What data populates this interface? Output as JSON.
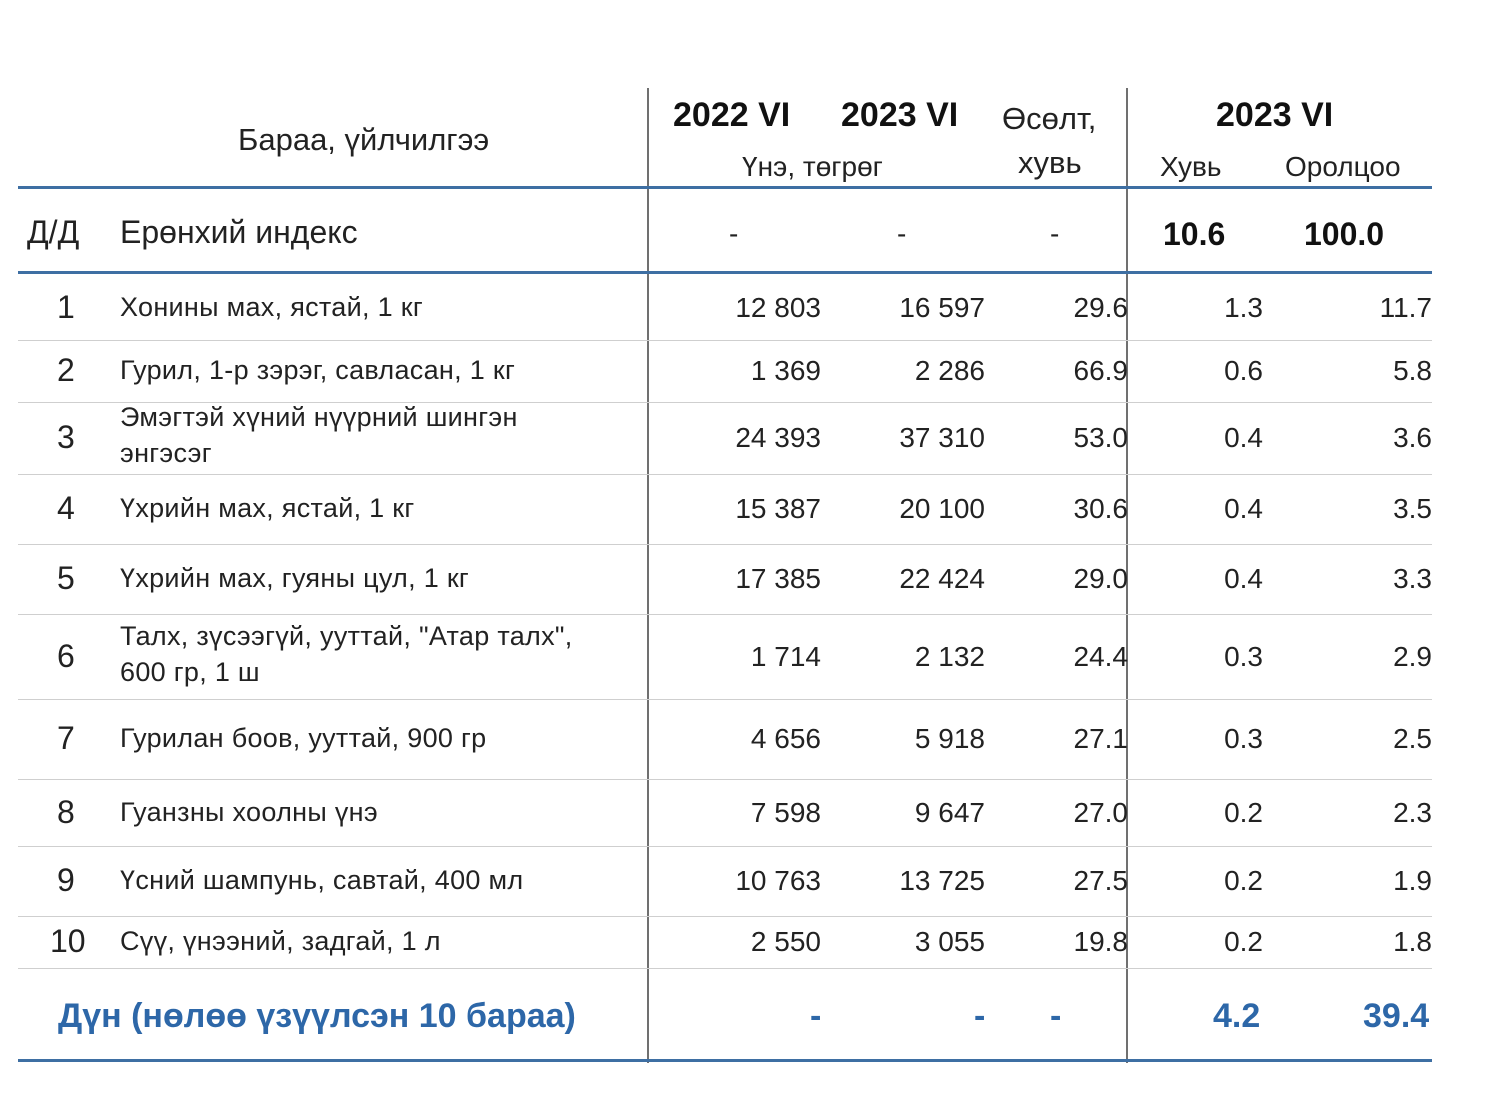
{
  "header": {
    "product_label": "Бараа, үйлчилгээ",
    "year_2022": "2022 VI",
    "year_2023": "2023 VI",
    "price_label": "Үнэ, төгрөг",
    "growth_label_1": "Өсөлт,",
    "growth_label_2": "хувь",
    "right_year": "2023 VI",
    "share_label": "Хувь",
    "contribution_label": "Оролцоо"
  },
  "general": {
    "idx": "Д/Д",
    "name": "Ерөнхий индекс",
    "p2022": "-",
    "p2023": "-",
    "growth": "-",
    "share": "10.6",
    "contribution": "100.0"
  },
  "rows": [
    {
      "idx": "1",
      "name": "Хонины мах, ястай, 1 кг",
      "name2": "",
      "p2022": "12 803",
      "p2023": "16 597",
      "growth": "29.6",
      "share": "1.3",
      "contribution": "11.7"
    },
    {
      "idx": "2",
      "name": "Гурил, 1-р зэрэг, савласан, 1 кг",
      "name2": "",
      "p2022": "1 369",
      "p2023": "2 286",
      "growth": "66.9",
      "share": "0.6",
      "contribution": "5.8"
    },
    {
      "idx": "3",
      "name": "Эмэгтэй хүний нүүрний шингэн",
      "name2": "энгэсэг",
      "p2022": "24 393",
      "p2023": "37 310",
      "growth": "53.0",
      "share": "0.4",
      "contribution": "3.6"
    },
    {
      "idx": "4",
      "name": "Үхрийн мах, ястай, 1 кг",
      "name2": "",
      "p2022": "15 387",
      "p2023": "20 100",
      "growth": "30.6",
      "share": "0.4",
      "contribution": "3.5"
    },
    {
      "idx": "5",
      "name": "Үхрийн мах, гуяны цул, 1 кг",
      "name2": "",
      "p2022": "17 385",
      "p2023": "22 424",
      "growth": "29.0",
      "share": "0.4",
      "contribution": "3.3"
    },
    {
      "idx": "6",
      "name": "Талх, зүсээгүй, ууттай, \"Атар талх\",",
      "name2": "600 гр, 1 ш",
      "p2022": "1 714",
      "p2023": "2 132",
      "growth": "24.4",
      "share": "0.3",
      "contribution": "2.9"
    },
    {
      "idx": "7",
      "name": "Гурилан боов, ууттай, 900 гр",
      "name2": "",
      "p2022": "4 656",
      "p2023": "5 918",
      "growth": "27.1",
      "share": "0.3",
      "contribution": "2.5"
    },
    {
      "idx": "8",
      "name": "Гуанзны хоолны үнэ",
      "name2": "",
      "p2022": "7 598",
      "p2023": "9 647",
      "growth": "27.0",
      "share": "0.2",
      "contribution": "2.3"
    },
    {
      "idx": "9",
      "name": "Үсний шампунь, савтай, 400 мл",
      "name2": "",
      "p2022": "10 763",
      "p2023": "13 725",
      "growth": "27.5",
      "share": "0.2",
      "contribution": "1.9"
    },
    {
      "idx": "10",
      "name": "Сүү, үнээний, задгай, 1 л",
      "name2": "",
      "p2022": "2 550",
      "p2023": "3 055",
      "growth": "19.8",
      "share": "0.2",
      "contribution": "1.8"
    }
  ],
  "total": {
    "label": "Дүн (нөлөө үзүүлсэн 10 бараа)",
    "p2022": "-",
    "p2023": "-",
    "growth": "-",
    "share": "4.2",
    "contribution": "39.4"
  }
}
